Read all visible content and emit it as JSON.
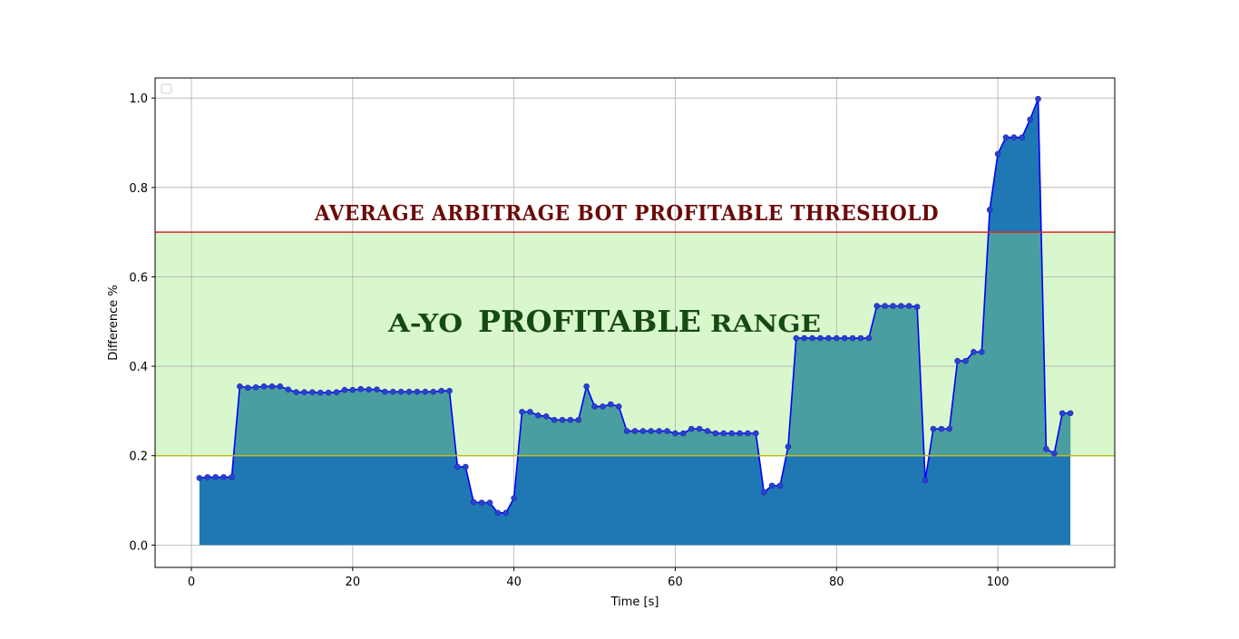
{
  "chart_data": {
    "type": "area",
    "xlabel": "Time [s]",
    "ylabel": "Difference %",
    "xlim": [
      -4.5,
      114.5
    ],
    "ylim": [
      -0.05,
      1.045
    ],
    "xticks": [
      0,
      20,
      40,
      60,
      80,
      100
    ],
    "yticks": [
      0.0,
      0.2,
      0.4,
      0.6,
      0.8,
      1.0
    ],
    "xtick_labels": [
      "0",
      "20",
      "40",
      "60",
      "80",
      "100"
    ],
    "ytick_labels": [
      "0.0",
      "0.2",
      "0.4",
      "0.6",
      "0.8",
      "1.0"
    ],
    "grid": true,
    "legend": "top-left (empty)",
    "colors": {
      "line": "#0000ff",
      "fill": "#1f77b4",
      "band": "#d9f7cc",
      "threshold_line": "#d62728",
      "lower_line": "#bcbd22",
      "grid": "#b0b0b0"
    },
    "profitable_band": [
      0.2,
      0.7
    ],
    "threshold_value": 0.7,
    "lower_bound_value": 0.2,
    "annotations": {
      "threshold": "AVERAGE ARBITRAGE BOT PROFITABLE THRESHOLD",
      "range_part1": "A-YO",
      "range_part2": "PROFITABLE",
      "range_part3": "RANGE"
    },
    "x": [
      1,
      2,
      3,
      4,
      5,
      6,
      7,
      8,
      9,
      10,
      11,
      12,
      13,
      14,
      15,
      16,
      17,
      18,
      19,
      20,
      21,
      22,
      23,
      24,
      25,
      26,
      27,
      28,
      29,
      30,
      31,
      32,
      33,
      34,
      35,
      36,
      37,
      38,
      39,
      40,
      41,
      42,
      43,
      44,
      45,
      46,
      47,
      48,
      49,
      50,
      51,
      52,
      53,
      54,
      55,
      56,
      57,
      58,
      59,
      60,
      61,
      62,
      63,
      64,
      65,
      66,
      67,
      68,
      69,
      70,
      71,
      72,
      73,
      74,
      75,
      76,
      77,
      78,
      79,
      80,
      81,
      82,
      83,
      84,
      85,
      86,
      87,
      88,
      89,
      90,
      91,
      92,
      93,
      94,
      95,
      96,
      97,
      98,
      99,
      100,
      101,
      102,
      103,
      104,
      105,
      106,
      107,
      108,
      109
    ],
    "y": [
      0.15,
      0.152,
      0.152,
      0.152,
      0.152,
      0.355,
      0.352,
      0.353,
      0.355,
      0.355,
      0.355,
      0.348,
      0.342,
      0.342,
      0.342,
      0.341,
      0.341,
      0.342,
      0.347,
      0.347,
      0.349,
      0.348,
      0.348,
      0.343,
      0.343,
      0.343,
      0.343,
      0.343,
      0.343,
      0.343,
      0.345,
      0.345,
      0.175,
      0.175,
      0.096,
      0.095,
      0.095,
      0.072,
      0.072,
      0.105,
      0.298,
      0.298,
      0.29,
      0.288,
      0.28,
      0.28,
      0.28,
      0.28,
      0.355,
      0.31,
      0.31,
      0.315,
      0.31,
      0.255,
      0.255,
      0.255,
      0.255,
      0.255,
      0.255,
      0.25,
      0.25,
      0.26,
      0.26,
      0.255,
      0.25,
      0.25,
      0.25,
      0.25,
      0.25,
      0.25,
      0.118,
      0.133,
      0.133,
      0.22,
      0.463,
      0.463,
      0.463,
      0.463,
      0.463,
      0.463,
      0.463,
      0.463,
      0.463,
      0.463,
      0.535,
      0.535,
      0.535,
      0.535,
      0.535,
      0.533,
      0.145,
      0.26,
      0.26,
      0.26,
      0.412,
      0.412,
      0.432,
      0.432,
      0.75,
      0.875,
      0.912,
      0.912,
      0.912,
      0.952,
      0.998,
      0.215,
      0.205,
      0.295,
      0.295
    ]
  }
}
